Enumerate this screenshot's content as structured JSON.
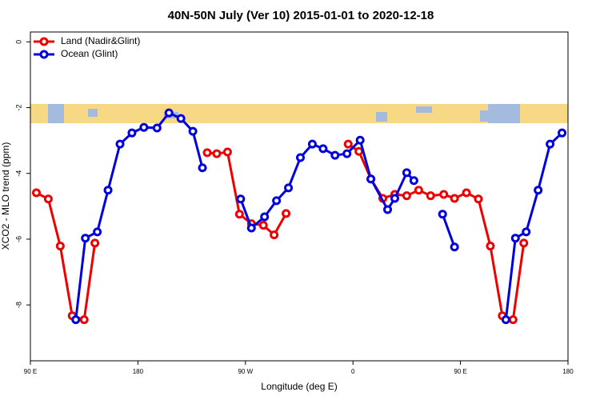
{
  "chart_data": {
    "type": "line",
    "title": "40N-50N July (Ver 10)   2015-01-01 to 2020-12-18",
    "xlabel": "Longitude (deg E)",
    "ylabel": "XCO2 - MLO trend (ppm)",
    "xlim": [
      90,
      540
    ],
    "ylim": [
      -9.7,
      0.3
    ],
    "xticks": [
      {
        "value": 90,
        "label": "90 E"
      },
      180,
      {
        "value": 270,
        "label": "90 W"
      },
      {
        "value": 360,
        "label": "0"
      },
      {
        "value": 450,
        "label": "90 E"
      },
      {
        "value": 540,
        "label": "180"
      }
    ],
    "yticks": [
      0,
      -2,
      -4,
      -6,
      -8
    ],
    "legend": "topleft",
    "series": [
      {
        "name": "Land (Nadir&Glint)",
        "color": "#ee0000",
        "x": [
          95,
          105,
          115,
          125,
          135,
          144,
          null,
          238,
          246,
          255,
          265,
          275,
          285,
          294,
          304,
          null,
          356,
          365,
          375,
          385,
          395,
          405,
          415,
          425,
          436,
          445,
          455,
          465,
          475,
          485,
          494,
          503
        ],
        "values": [
          -4.59,
          -4.78,
          -6.21,
          -8.33,
          -8.45,
          -6.12,
          null,
          -3.37,
          -3.4,
          -3.35,
          -5.24,
          -5.53,
          -5.58,
          -5.87,
          -5.22,
          null,
          -3.11,
          -3.33,
          -4.17,
          -4.76,
          -4.64,
          -4.68,
          -4.51,
          -4.68,
          -4.64,
          -4.76,
          -4.59,
          -4.78,
          -6.21,
          -8.33,
          -8.45,
          -6.12
        ]
      },
      {
        "name": "Ocean (Glint)",
        "color": "#0000dd",
        "x": [
          128,
          136,
          146,
          155,
          165,
          175,
          185,
          196,
          206,
          216,
          226,
          234,
          null,
          266,
          275,
          286,
          296,
          306,
          316,
          326,
          335,
          345,
          355,
          366,
          375,
          389,
          395,
          405,
          411,
          null,
          435,
          445,
          null,
          488,
          496,
          505,
          515,
          525,
          535
        ],
        "values": [
          -8.45,
          -5.97,
          -5.78,
          -4.51,
          -3.11,
          -2.77,
          -2.6,
          -2.62,
          -2.16,
          -2.33,
          -2.72,
          -3.83,
          null,
          -4.78,
          -5.66,
          -5.32,
          -4.83,
          -4.44,
          -3.52,
          -3.11,
          -3.25,
          -3.45,
          -3.4,
          -2.99,
          -4.17,
          -5.1,
          -4.76,
          -3.98,
          -4.22,
          null,
          -5.24,
          -6.24,
          null,
          -8.45,
          -5.97,
          -5.78,
          -4.51,
          -3.11,
          -2.77
        ]
      }
    ]
  }
}
